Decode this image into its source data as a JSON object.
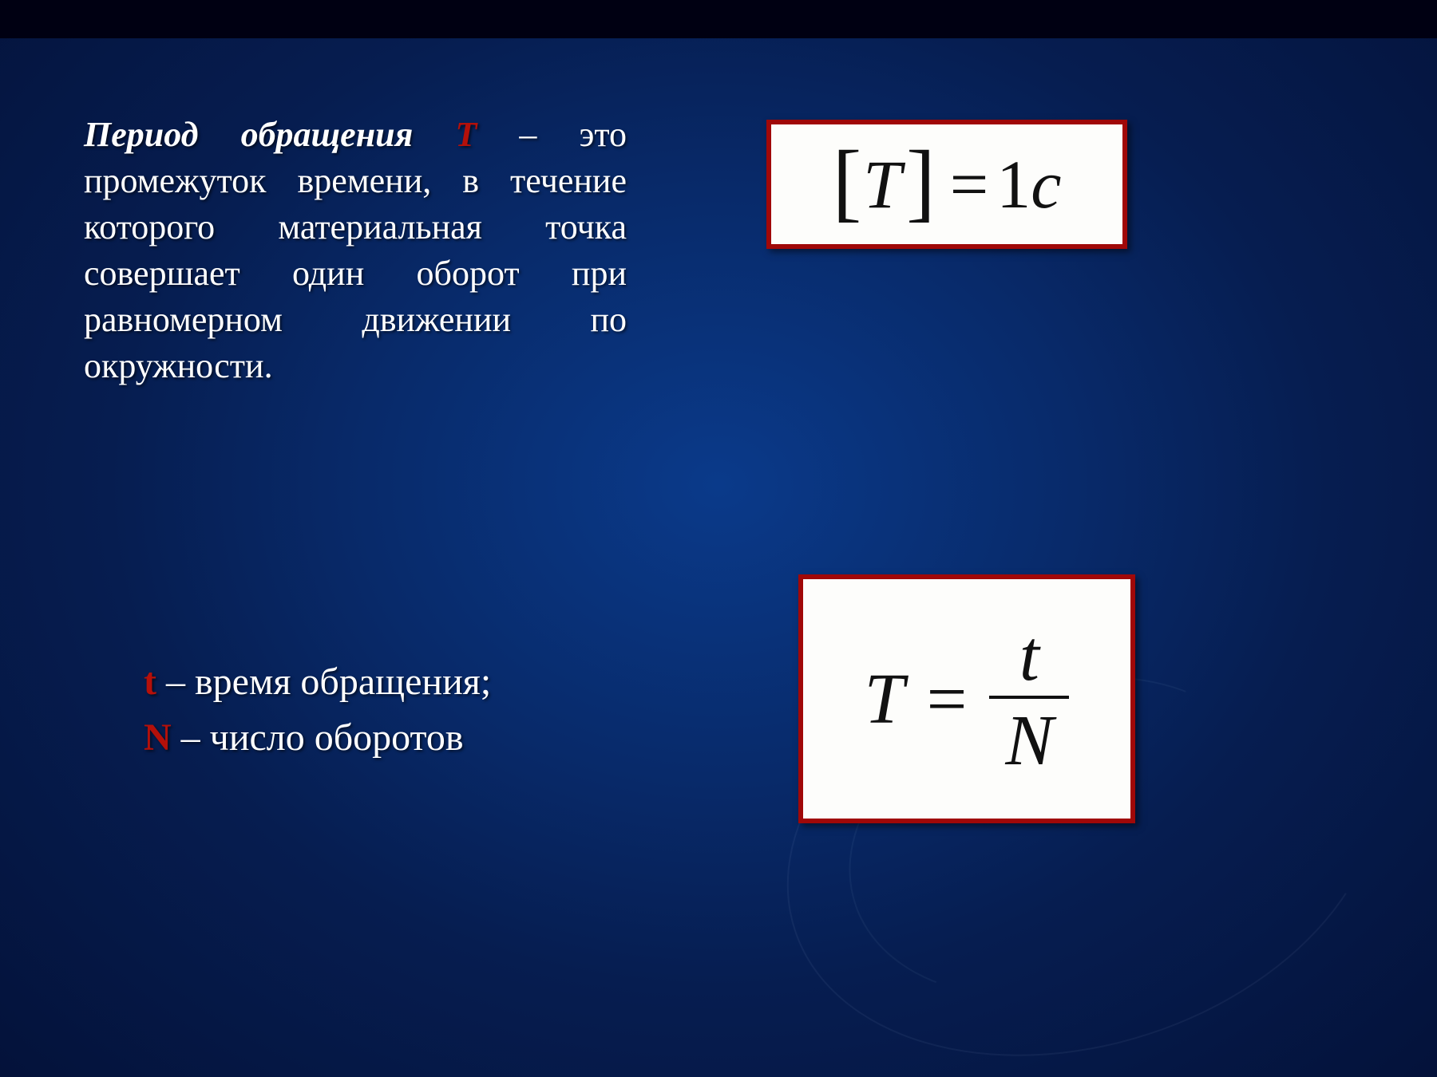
{
  "slide": {
    "background_gradient": [
      "#0a3a8a",
      "#082a6a",
      "#061d50",
      "#04123a"
    ],
    "topbar_color": "#000012"
  },
  "definition": {
    "lead": "Период обращения",
    "symbol": "T",
    "tail": " – это промежуток времени, в течение которого материальная точка совершает один оборот при равномерном движении по окружности",
    "text_color": "#ffffff",
    "symbol_color": "#b4100a",
    "fontsize_pt": 33
  },
  "legend": {
    "t_symbol": "t",
    "t_text": " – время обращения;",
    "N_symbol": "N",
    "N_text": " – число оборотов",
    "symbol_color": "#b4100a",
    "text_color": "#ffffff",
    "fontsize_pt": 36
  },
  "formula1": {
    "lhs_open": "[",
    "lhs_var": "T",
    "lhs_close": "]",
    "eq": "=",
    "rhs_num": "1",
    "rhs_unit": "c",
    "box_bg": "#fdfdfb",
    "box_border": "#a00808",
    "text_color": "#111111",
    "fontsize_pt": 64
  },
  "formula2": {
    "lhs": "T",
    "eq": "=",
    "numerator": "t",
    "denominator": "N",
    "box_bg": "#fdfdfb",
    "box_border": "#a00808",
    "text_color": "#111111",
    "fontsize_pt": 68
  }
}
